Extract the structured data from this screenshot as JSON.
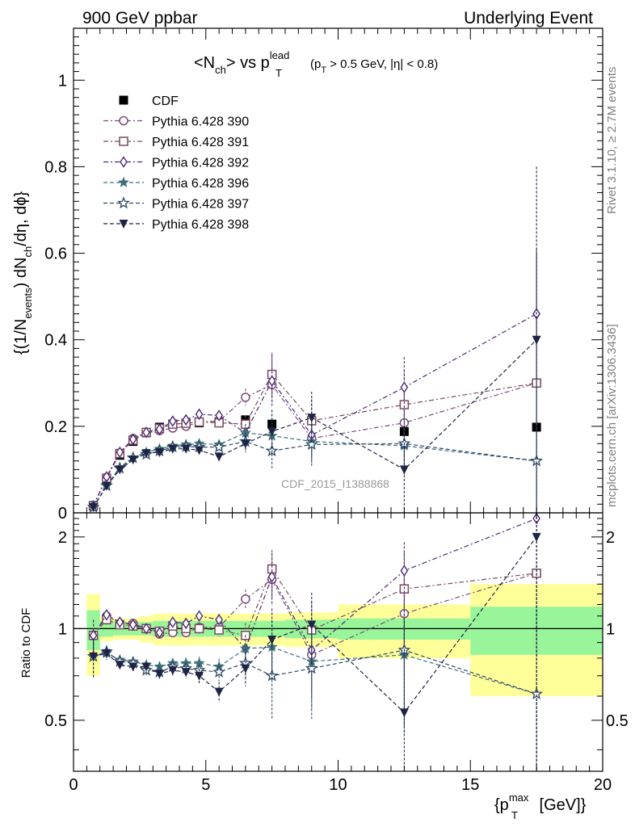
{
  "header": {
    "left": "900 GeV ppbar",
    "right": "Underlying Event"
  },
  "side_labels": {
    "rivet": "Rivet 3.1.10, ≥ 2.7M events",
    "mcplots": "mcplots.cern.ch [arXiv:1306.3436]"
  },
  "watermark": "CDF_2015_I1388868",
  "chart_data": [
    {
      "type": "scatter",
      "panel": "main",
      "title": {
        "base": "<N",
        "base_sub": "ch",
        "mid": "> vs p",
        "mid_sup": "lead",
        "mid_sub": "T",
        "cut1": "(p",
        "cut1_sub": "T",
        "cut2": " > 0.5 GeV, |η| < 0.8)"
      },
      "ylabel": {
        "p1": "{(1/N",
        "p1_sub": "events",
        "p2": ") dN",
        "p2_sub": "ch",
        "p3": "/dη, dϕ}"
      },
      "xlim": [
        0,
        20
      ],
      "ylim": [
        0,
        1.12
      ],
      "y_ticks": [
        0,
        0.2,
        0.4,
        0.6,
        0.8,
        1
      ],
      "y_tick_labels": [
        "0",
        "0.2",
        "0.4",
        "0.6",
        "0.8",
        "1"
      ],
      "legend_position": "top-left",
      "x": [
        0.75,
        1.25,
        1.75,
        2.25,
        2.75,
        3.25,
        3.75,
        4.25,
        4.75,
        5.5,
        6.5,
        7.5,
        9.0,
        12.5,
        17.5
      ],
      "series": [
        {
          "name": "CDF",
          "marker": "square-filled",
          "color": "#000000",
          "line": "none",
          "values": [
            0.017,
            0.075,
            0.133,
            0.165,
            0.185,
            0.198,
            0.202,
            0.206,
            0.208,
            0.21,
            0.215,
            0.205,
            0.213,
            0.188,
            0.198
          ]
        },
        {
          "name": "Pythia 6.428 390",
          "marker": "circle-open",
          "color": "#7a4a78",
          "line": "dashdot",
          "values": [
            0.016,
            0.082,
            0.138,
            0.172,
            0.185,
            0.19,
            0.196,
            0.2,
            0.21,
            0.212,
            0.267,
            0.296,
            0.172,
            0.208,
            0.3
          ],
          "errors": [
            0.002,
            0.003,
            0.003,
            0.004,
            0.005,
            0.005,
            0.006,
            0.007,
            0.008,
            0.01,
            0.02,
            0.04,
            0.05,
            0.08,
            0.3
          ]
        },
        {
          "name": "Pythia 6.428 391",
          "marker": "square-open",
          "color": "#7a4a5e",
          "line": "dashdot",
          "values": [
            0.016,
            0.08,
            0.137,
            0.168,
            0.186,
            0.195,
            0.205,
            0.207,
            0.21,
            0.208,
            0.205,
            0.32,
            0.213,
            0.25,
            0.3
          ],
          "errors": [
            0.002,
            0.003,
            0.003,
            0.004,
            0.005,
            0.005,
            0.006,
            0.007,
            0.008,
            0.01,
            0.02,
            0.05,
            0.05,
            0.08,
            0.3
          ]
        },
        {
          "name": "Pythia 6.428 392",
          "marker": "diamond-open",
          "color": "#4b2a75",
          "line": "dashdot",
          "values": [
            0.016,
            0.083,
            0.14,
            0.17,
            0.186,
            0.193,
            0.212,
            0.215,
            0.228,
            0.225,
            0.185,
            0.305,
            0.18,
            0.29,
            0.46
          ],
          "errors": [
            0.002,
            0.003,
            0.003,
            0.004,
            0.005,
            0.005,
            0.006,
            0.007,
            0.008,
            0.01,
            0.02,
            0.06,
            0.05,
            0.07,
            0.15
          ]
        },
        {
          "name": "Pythia 6.428 396",
          "marker": "star-filled",
          "color": "#3f6f7a",
          "line": "dashed",
          "values": [
            0.013,
            0.062,
            0.105,
            0.128,
            0.14,
            0.148,
            0.155,
            0.158,
            0.16,
            0.158,
            0.185,
            0.178,
            0.165,
            0.155,
            0.12
          ],
          "errors": [
            0.002,
            0.003,
            0.003,
            0.004,
            0.005,
            0.005,
            0.006,
            0.007,
            0.008,
            0.01,
            0.02,
            0.04,
            0.05,
            0.07,
            0.2
          ]
        },
        {
          "name": "Pythia 6.428 397",
          "marker": "star-open",
          "color": "#2f4a66",
          "line": "dashed",
          "values": [
            0.013,
            0.063,
            0.103,
            0.127,
            0.135,
            0.143,
            0.152,
            0.153,
            0.152,
            0.152,
            0.165,
            0.143,
            0.158,
            0.16,
            0.12
          ],
          "errors": [
            0.002,
            0.003,
            0.003,
            0.004,
            0.005,
            0.005,
            0.006,
            0.007,
            0.008,
            0.01,
            0.02,
            0.04,
            0.05,
            0.07,
            0.2
          ]
        },
        {
          "name": "Pythia 6.428 398",
          "marker": "triangle-down-filled",
          "color": "#1f2445",
          "line": "dashed",
          "values": [
            0.013,
            0.062,
            0.1,
            0.123,
            0.138,
            0.14,
            0.148,
            0.148,
            0.145,
            0.13,
            0.16,
            0.188,
            0.22,
            0.1,
            0.4
          ],
          "errors": [
            0.002,
            0.003,
            0.003,
            0.004,
            0.005,
            0.005,
            0.006,
            0.007,
            0.008,
            0.01,
            0.02,
            0.05,
            0.06,
            0.1,
            0.4
          ]
        }
      ]
    },
    {
      "type": "scatter",
      "panel": "ratio",
      "ylabel": "Ratio to CDF",
      "xlabel": {
        "open": "{p",
        "sup": "max",
        "sub": "T",
        "close": " [GeV]}"
      },
      "xlim": [
        0,
        20
      ],
      "ylim": [
        0.34,
        2.4
      ],
      "y_scale": "log",
      "x_ticks": [
        0,
        5,
        10,
        15,
        20
      ],
      "x_tick_labels": [
        "0",
        "5",
        "10",
        "15",
        "20"
      ],
      "y_ticks": [
        0.5,
        1,
        2
      ],
      "y_tick_labels": [
        "0.5",
        "1",
        "2"
      ],
      "reference_line": 1,
      "bands": {
        "x_edges": [
          0.5,
          1.0,
          1.5,
          2.0,
          2.5,
          3.0,
          3.5,
          4.0,
          4.5,
          5.0,
          6.0,
          7.0,
          8.0,
          10.0,
          15.0,
          20.0
        ],
        "green_half": [
          0.15,
          0.06,
          0.05,
          0.05,
          0.05,
          0.06,
          0.06,
          0.06,
          0.06,
          0.06,
          0.06,
          0.06,
          0.07,
          0.08,
          0.18
        ],
        "yellow_half": [
          0.3,
          0.09,
          0.08,
          0.08,
          0.1,
          0.12,
          0.12,
          0.12,
          0.12,
          0.12,
          0.12,
          0.12,
          0.13,
          0.2,
          0.4
        ],
        "green_color": "#99f599",
        "yellow_color": "#ffff99"
      },
      "x": [
        0.75,
        1.25,
        1.75,
        2.25,
        2.75,
        3.25,
        3.75,
        4.25,
        4.75,
        5.5,
        6.5,
        7.5,
        9.0,
        12.5,
        17.5
      ],
      "series": [
        {
          "name": "Pythia 6.428 390",
          "values": [
            0.95,
            1.1,
            1.04,
            1.04,
            1.0,
            0.96,
            0.97,
            0.97,
            1.01,
            1.01,
            1.25,
            1.45,
            0.82,
            1.12,
            1.52
          ]
        },
        {
          "name": "Pythia 6.428 391",
          "values": [
            0.95,
            1.07,
            1.03,
            1.02,
            1.0,
            0.98,
            1.02,
            1.0,
            1.0,
            0.99,
            0.95,
            1.57,
            0.99,
            1.35,
            1.52
          ]
        },
        {
          "name": "Pythia 6.428 392",
          "values": [
            0.95,
            1.11,
            1.05,
            1.03,
            1.0,
            0.97,
            1.05,
            1.04,
            1.1,
            1.07,
            0.86,
            1.48,
            0.85,
            1.55,
            2.3
          ]
        },
        {
          "name": "Pythia 6.428 396",
          "values": [
            0.81,
            0.83,
            0.79,
            0.78,
            0.76,
            0.75,
            0.77,
            0.77,
            0.77,
            0.75,
            0.86,
            0.87,
            0.78,
            0.82,
            0.61
          ]
        },
        {
          "name": "Pythia 6.428 397",
          "values": [
            0.81,
            0.84,
            0.78,
            0.77,
            0.73,
            0.72,
            0.75,
            0.74,
            0.73,
            0.72,
            0.77,
            0.7,
            0.74,
            0.85,
            0.61
          ]
        },
        {
          "name": "Pythia 6.428 398",
          "values": [
            0.81,
            0.83,
            0.76,
            0.75,
            0.75,
            0.71,
            0.73,
            0.72,
            0.7,
            0.62,
            0.74,
            0.92,
            1.03,
            0.53,
            2.0
          ]
        }
      ]
    }
  ]
}
